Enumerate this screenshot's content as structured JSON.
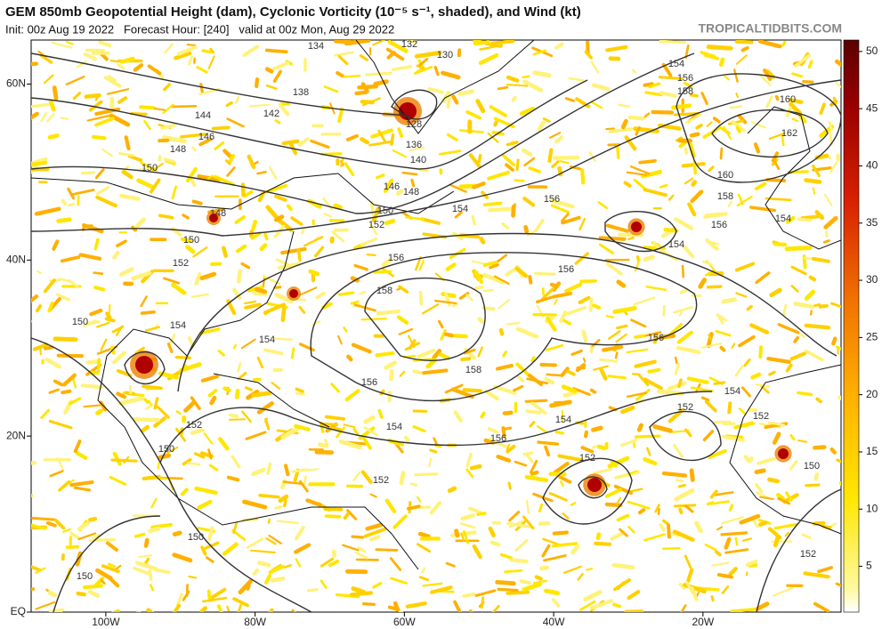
{
  "header": {
    "title": "GEM 850mb Geopotential Height (dam), Cyclonic Vorticity (10⁻⁵ s⁻¹, shaded), and Wind (kt)",
    "subtitle": "Init: 00z Aug 19 2022   Forecast Hour: [240]   valid at 00z Mon, Aug 29 2022",
    "source": "TROPICALTIDBITS.COM"
  },
  "map": {
    "lonlim": [
      -110,
      -1.5
    ],
    "latlim": [
      0,
      65
    ],
    "lonticks": [
      {
        "value": -100,
        "label": "100W"
      },
      {
        "value": -80,
        "label": "80W"
      },
      {
        "value": -60,
        "label": "60W"
      },
      {
        "value": -40,
        "label": "40W"
      },
      {
        "value": -20,
        "label": "20W"
      }
    ],
    "latticks": [
      {
        "value": 60,
        "label": "60N"
      },
      {
        "value": 40,
        "label": "40N"
      },
      {
        "value": 20,
        "label": "20N"
      },
      {
        "value": 0,
        "label": "EQ"
      }
    ],
    "contour_labels": [
      132,
      130,
      134,
      138,
      142,
      144,
      146,
      148,
      150,
      128,
      136,
      140,
      146,
      148,
      150,
      152,
      148,
      150,
      152,
      154,
      154,
      156,
      158,
      160,
      162,
      160,
      158,
      156,
      154,
      156,
      156,
      158,
      156,
      156,
      158,
      156,
      154,
      152,
      154,
      154,
      156,
      152,
      150,
      152,
      152,
      154,
      150,
      154,
      154,
      152,
      150,
      150,
      150,
      152
    ]
  },
  "colorbar": {
    "lim": [
      1,
      51
    ],
    "ticks": [
      5,
      10,
      15,
      20,
      25,
      30,
      35,
      40,
      45,
      50
    ]
  }
}
